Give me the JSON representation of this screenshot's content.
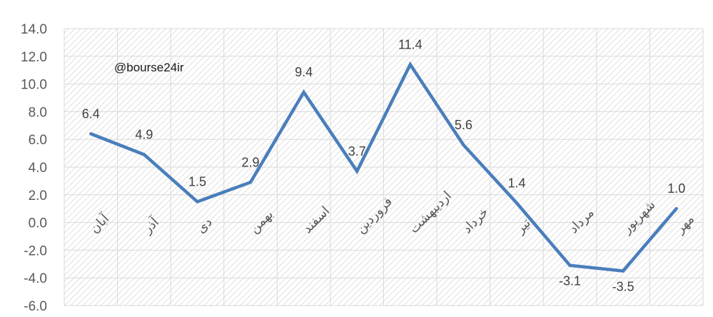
{
  "watermark": "@bourse24ir",
  "chart_data": {
    "type": "line",
    "title": "",
    "xlabel": "",
    "ylabel": "",
    "categories": [
      "آبان",
      "آذر",
      "دی",
      "بهمن",
      "اسفند",
      "فروردین",
      "اردیبهشت",
      "خرداد",
      "تیر",
      "مرداد",
      "شهریور",
      "مهر"
    ],
    "series": [
      {
        "values": [
          6.4,
          4.9,
          1.5,
          2.9,
          9.4,
          3.7,
          11.4,
          5.6,
          1.4,
          -3.1,
          -3.5,
          1.0
        ]
      }
    ],
    "data_labels": [
      "6.4",
      "4.9",
      "1.5",
      "2.9",
      "9.4",
      "3.7",
      "11.4",
      "5.6",
      "1.4",
      "-3.1",
      "-3.5",
      "1.0"
    ],
    "ylim": [
      -6,
      14
    ],
    "yticks": [
      "14.0",
      "12.0",
      "10.0",
      "8.0",
      "6.0",
      "4.0",
      "2.0",
      "0.0",
      "-2.0",
      "-4.0",
      "-6.0"
    ],
    "ytick_values": [
      14,
      12,
      10,
      8,
      6,
      4,
      2,
      0,
      -2,
      -4,
      -6
    ],
    "grid": true,
    "legend": "none",
    "colors": {
      "line": "#4a7ebb",
      "grid": "#d9d9d9",
      "hatch": "#e4e4e4"
    }
  }
}
